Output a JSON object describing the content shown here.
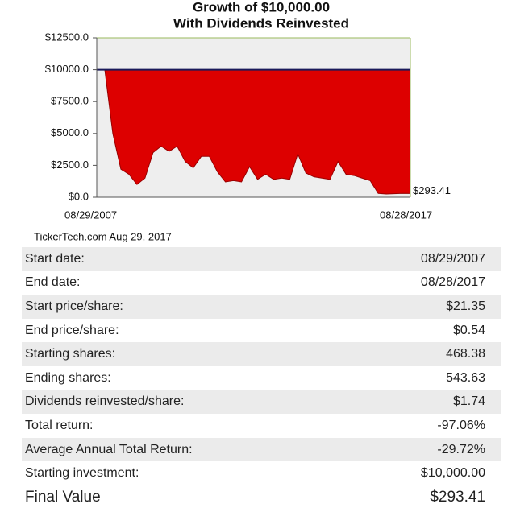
{
  "chart_data": {
    "type": "area",
    "title": [
      "Growth of $10,000.00",
      "With Dividends Reinvested"
    ],
    "categories": [
      "08/29/2007",
      null,
      null,
      null,
      null,
      null,
      null,
      null,
      null,
      null,
      null,
      null,
      null,
      null,
      null,
      null,
      null,
      null,
      null,
      null,
      null,
      null,
      null,
      null,
      null,
      null,
      null,
      null,
      null,
      null,
      null,
      null,
      null,
      null,
      null,
      null,
      null,
      null,
      null,
      "08/28/2017"
    ],
    "values": [
      10000,
      10000,
      5000,
      2200,
      1800,
      1000,
      1500,
      3500,
      4000,
      3600,
      4000,
      2800,
      2300,
      3200,
      3200,
      2000,
      1200,
      1300,
      1200,
      2400,
      1400,
      1800,
      1400,
      1500,
      1400,
      3400,
      1900,
      1600,
      1500,
      1400,
      2800,
      1800,
      1700,
      1500,
      1300,
      300,
      250,
      280,
      300,
      293.41
    ],
    "value_labels": [
      null,
      null,
      null,
      null,
      null,
      null,
      null,
      null,
      null,
      null,
      null,
      null,
      null,
      null,
      null,
      null,
      null,
      null,
      null,
      null,
      null,
      null,
      null,
      null,
      null,
      null,
      null,
      null,
      null,
      null,
      null,
      null,
      null,
      null,
      null,
      null,
      null,
      null,
      null,
      "$293.41"
    ],
    "reference": 10000,
    "color": "#dd0000",
    "ylim": [
      0,
      12500
    ],
    "yticks": [
      {
        "value": 0,
        "label": "$0.0"
      },
      {
        "value": 2500,
        "label": "$2500.0"
      },
      {
        "value": 5000,
        "label": "$5000.0"
      },
      {
        "value": 7500,
        "label": "$7500.0"
      },
      {
        "value": 10000,
        "label": "$10000.0"
      },
      {
        "value": 12500,
        "label": "$12500.0"
      }
    ],
    "grid": true,
    "source": "TickerTech.com  Aug 29, 2017"
  },
  "table": {
    "rows": [
      [
        "Start date:",
        "08/29/2007"
      ],
      [
        "End date:",
        "08/28/2017"
      ],
      [
        "Start price/share:",
        "$21.35"
      ],
      [
        "End price/share:",
        "$0.54"
      ],
      [
        "Starting shares:",
        "468.38"
      ],
      [
        "Ending shares:",
        "543.63"
      ],
      [
        "Dividends reinvested/share:",
        "$1.74"
      ],
      [
        "Total return:",
        "-97.06%"
      ],
      [
        "Average Annual Total Return:",
        "-29.72%"
      ],
      [
        "Starting investment:",
        "$10,000.00"
      ],
      [
        "Final Value",
        "$293.41"
      ]
    ]
  }
}
